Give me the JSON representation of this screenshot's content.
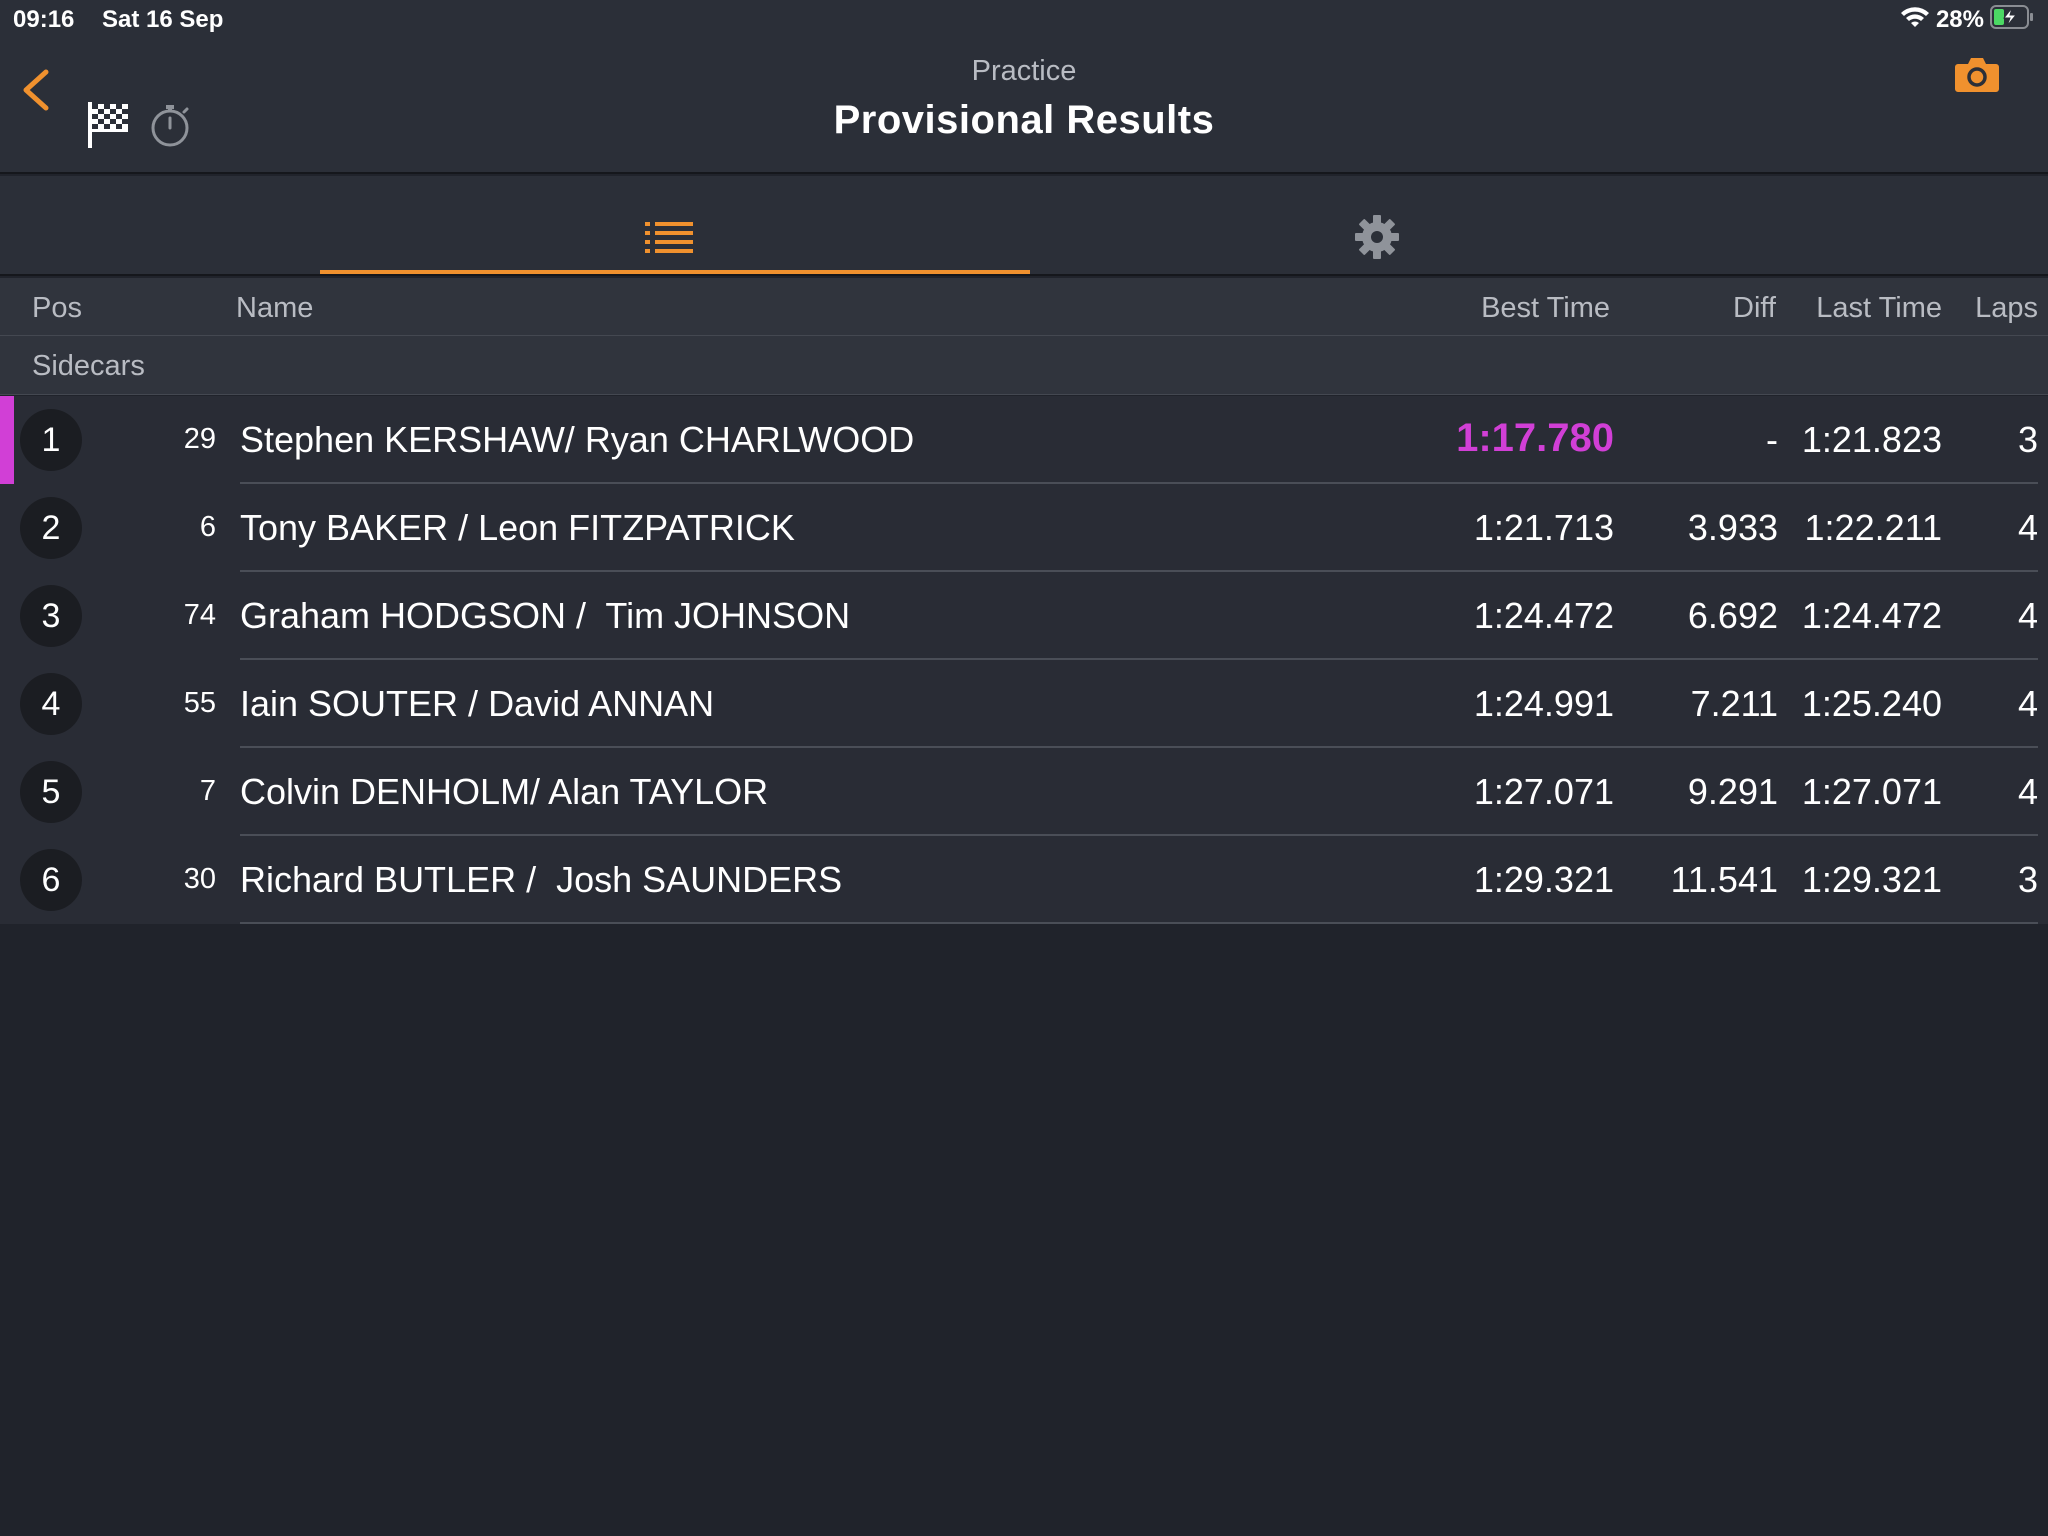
{
  "status": {
    "time": "09:16",
    "date": "Sat 16 Sep",
    "battery": "28%"
  },
  "nav": {
    "subtitle": "Practice",
    "title": "Provisional Results"
  },
  "tabs": [
    {
      "icon": "list-icon",
      "selected": true
    },
    {
      "icon": "gear-icon",
      "selected": false
    }
  ],
  "columns": {
    "pos": "Pos",
    "name": "Name",
    "best": "Best Time",
    "diff": "Diff",
    "last": "Last Time",
    "laps": "Laps"
  },
  "group": "Sidecars",
  "colors": {
    "accent": "#f0912e",
    "fastest": "#d13fd6"
  },
  "rows": [
    {
      "pos": "1",
      "num": "29",
      "name": "Stephen KERSHAW/ Ryan CHARLWOOD",
      "best": "1:17.780",
      "diff": "-",
      "last": "1:21.823",
      "laps": "3",
      "fastest": true
    },
    {
      "pos": "2",
      "num": "6",
      "name": "Tony BAKER / Leon FITZPATRICK",
      "best": "1:21.713",
      "diff": "3.933",
      "last": "1:22.211",
      "laps": "4",
      "fastest": false
    },
    {
      "pos": "3",
      "num": "74",
      "name": "Graham HODGSON /  Tim JOHNSON",
      "best": "1:24.472",
      "diff": "6.692",
      "last": "1:24.472",
      "laps": "4",
      "fastest": false
    },
    {
      "pos": "4",
      "num": "55",
      "name": "Iain SOUTER / David ANNAN",
      "best": "1:24.991",
      "diff": "7.211",
      "last": "1:25.240",
      "laps": "4",
      "fastest": false
    },
    {
      "pos": "5",
      "num": "7",
      "name": "Colvin DENHOLM/ Alan TAYLOR",
      "best": "1:27.071",
      "diff": "9.291",
      "last": "1:27.071",
      "laps": "4",
      "fastest": false
    },
    {
      "pos": "6",
      "num": "30",
      "name": "Richard BUTLER /  Josh SAUNDERS",
      "best": "1:29.321",
      "diff": "11.541",
      "last": "1:29.321",
      "laps": "3",
      "fastest": false
    }
  ]
}
